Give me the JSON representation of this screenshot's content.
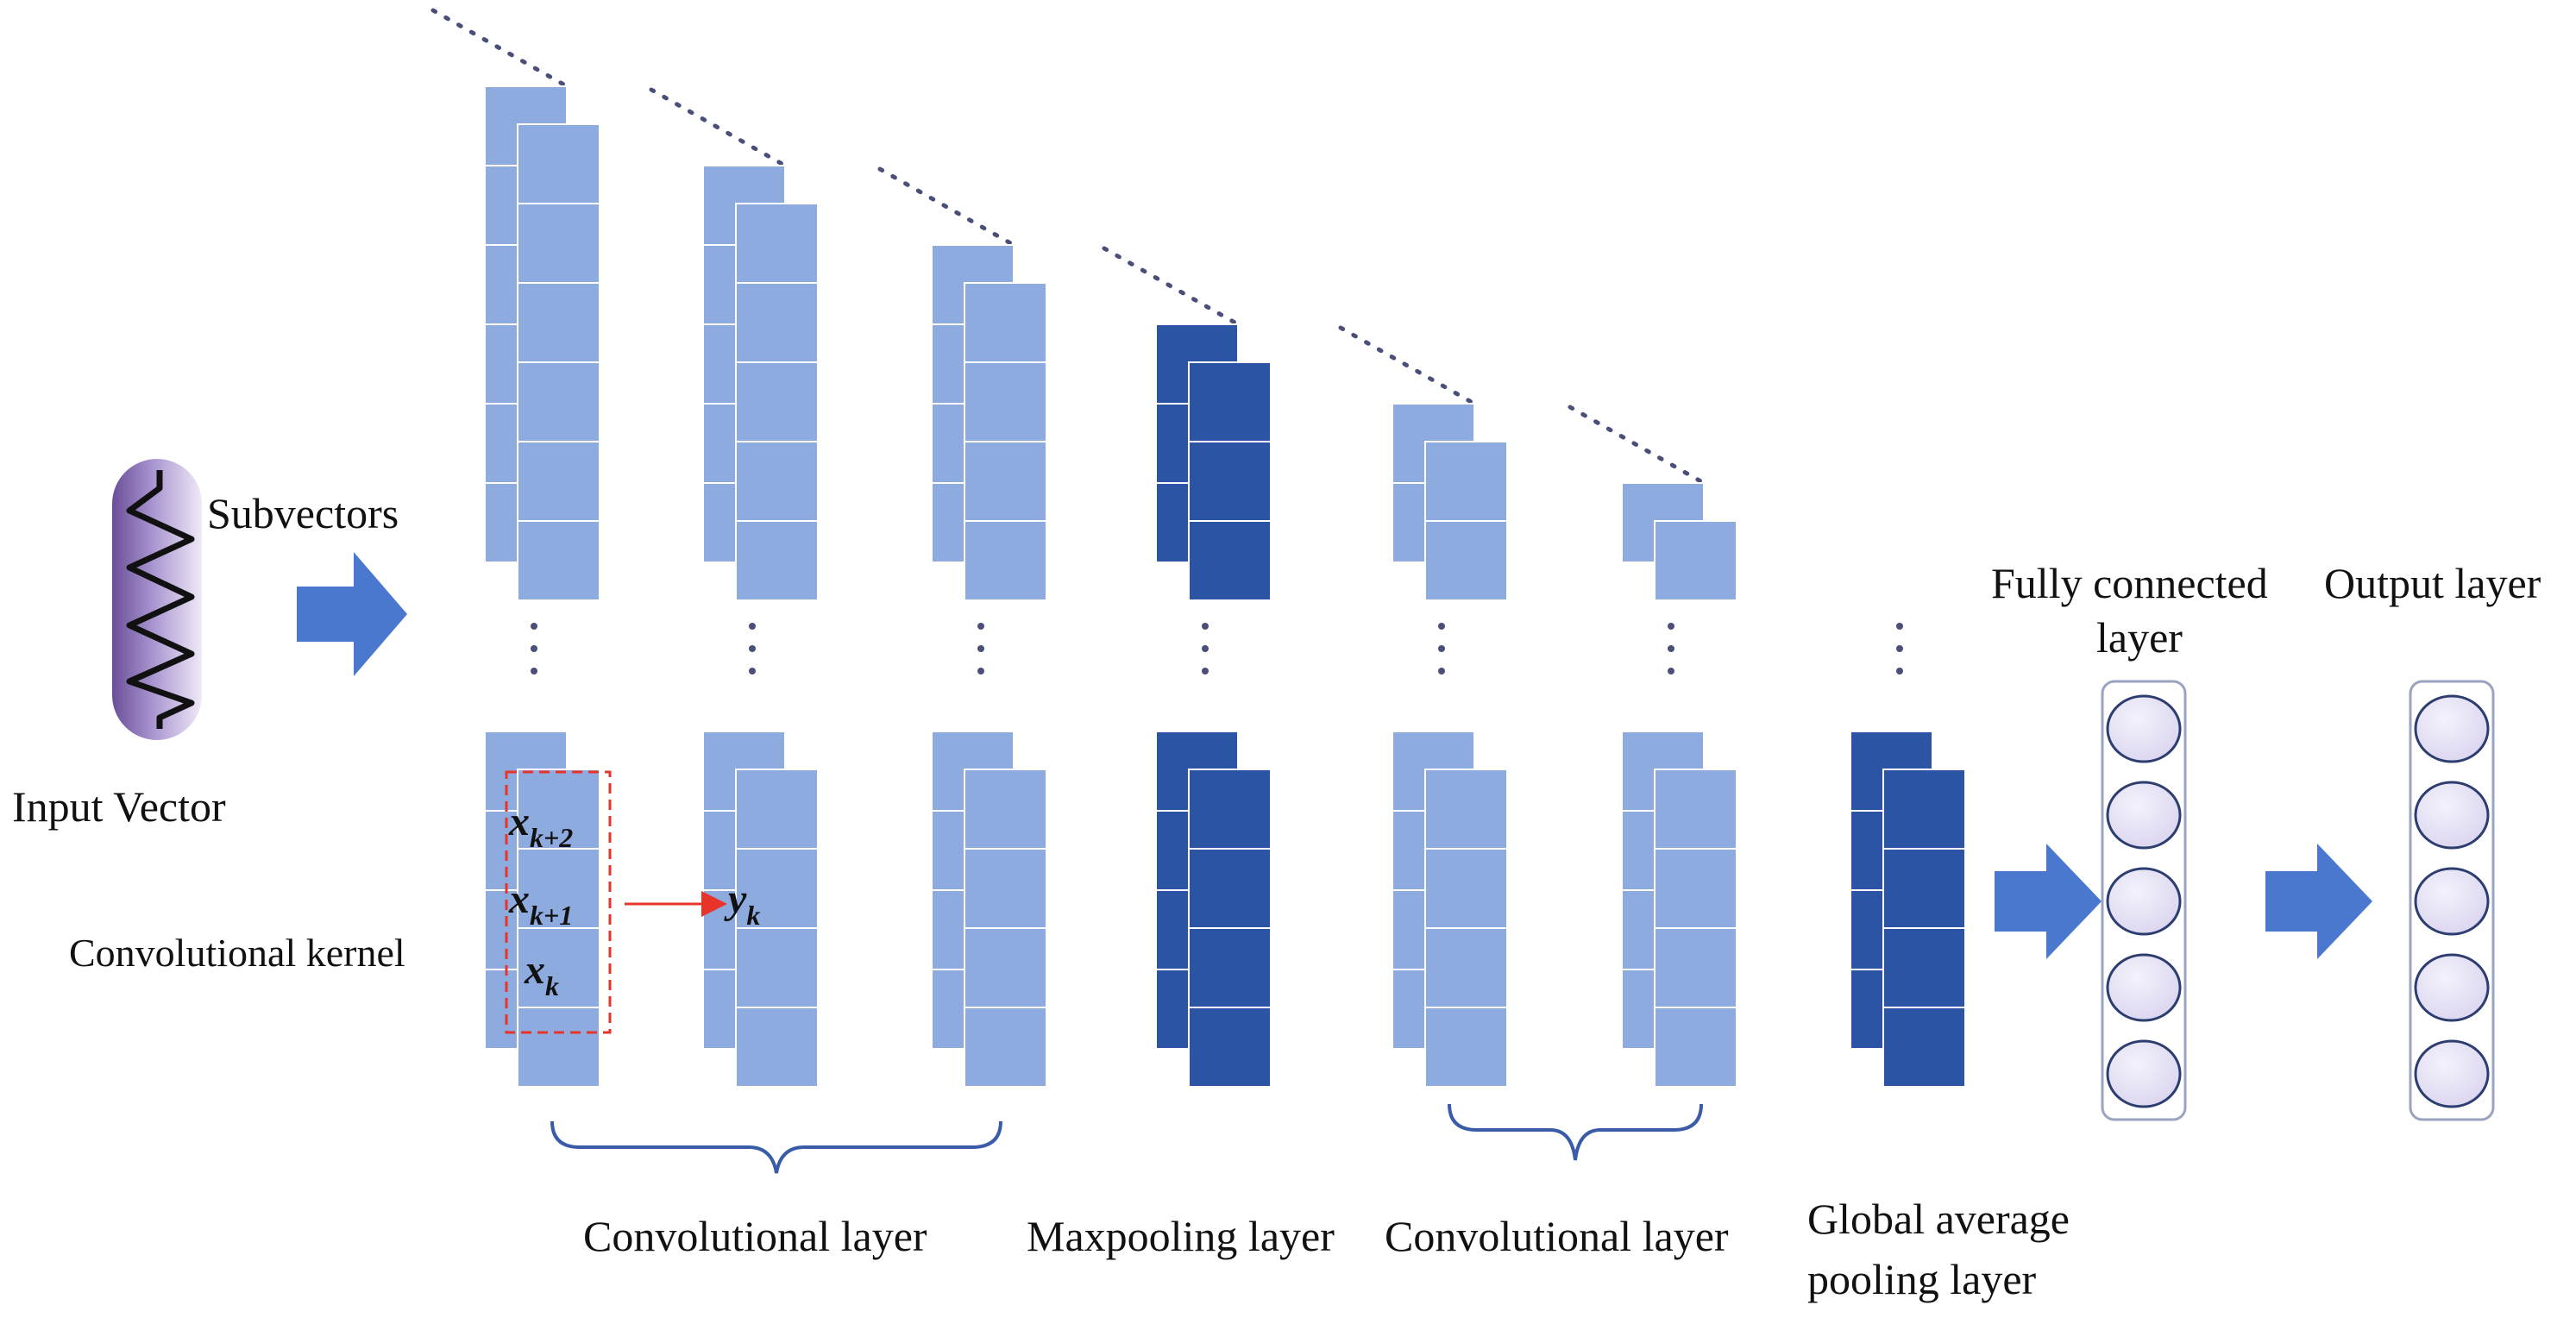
{
  "labels": {
    "subvectors": "Subvectors",
    "input_vector": "Input Vector",
    "convolutional_kernel": "Convolutional kernel",
    "conv_layer_1": "Convolutional layer",
    "maxpooling_layer": "Maxpooling layer",
    "conv_layer_2": "Convolutional layer",
    "global_avg_line1": "Global average",
    "global_avg_line2": "pooling layer",
    "fully_connected_line1": "Fully connected",
    "fully_connected_line2": "layer",
    "output_layer": "Output layer"
  },
  "kernel": {
    "x_k2": {
      "base": "x",
      "sub": "k+2"
    },
    "x_k1": {
      "base": "x",
      "sub": "k+1"
    },
    "x_k": {
      "base": "x",
      "sub": "k"
    },
    "y_k": {
      "base": "y",
      "sub": "k"
    }
  },
  "colors": {
    "light_block": "#8eabe0",
    "dark_block": "#2c54a4",
    "arrow": "#4a78cf",
    "kernel_box": "#e8332a",
    "brace": "#3a5ca8",
    "dots": "#4a4f7a",
    "node_fill": "#e2dcf2"
  },
  "fully_connected_nodes": 5,
  "output_nodes": 5
}
